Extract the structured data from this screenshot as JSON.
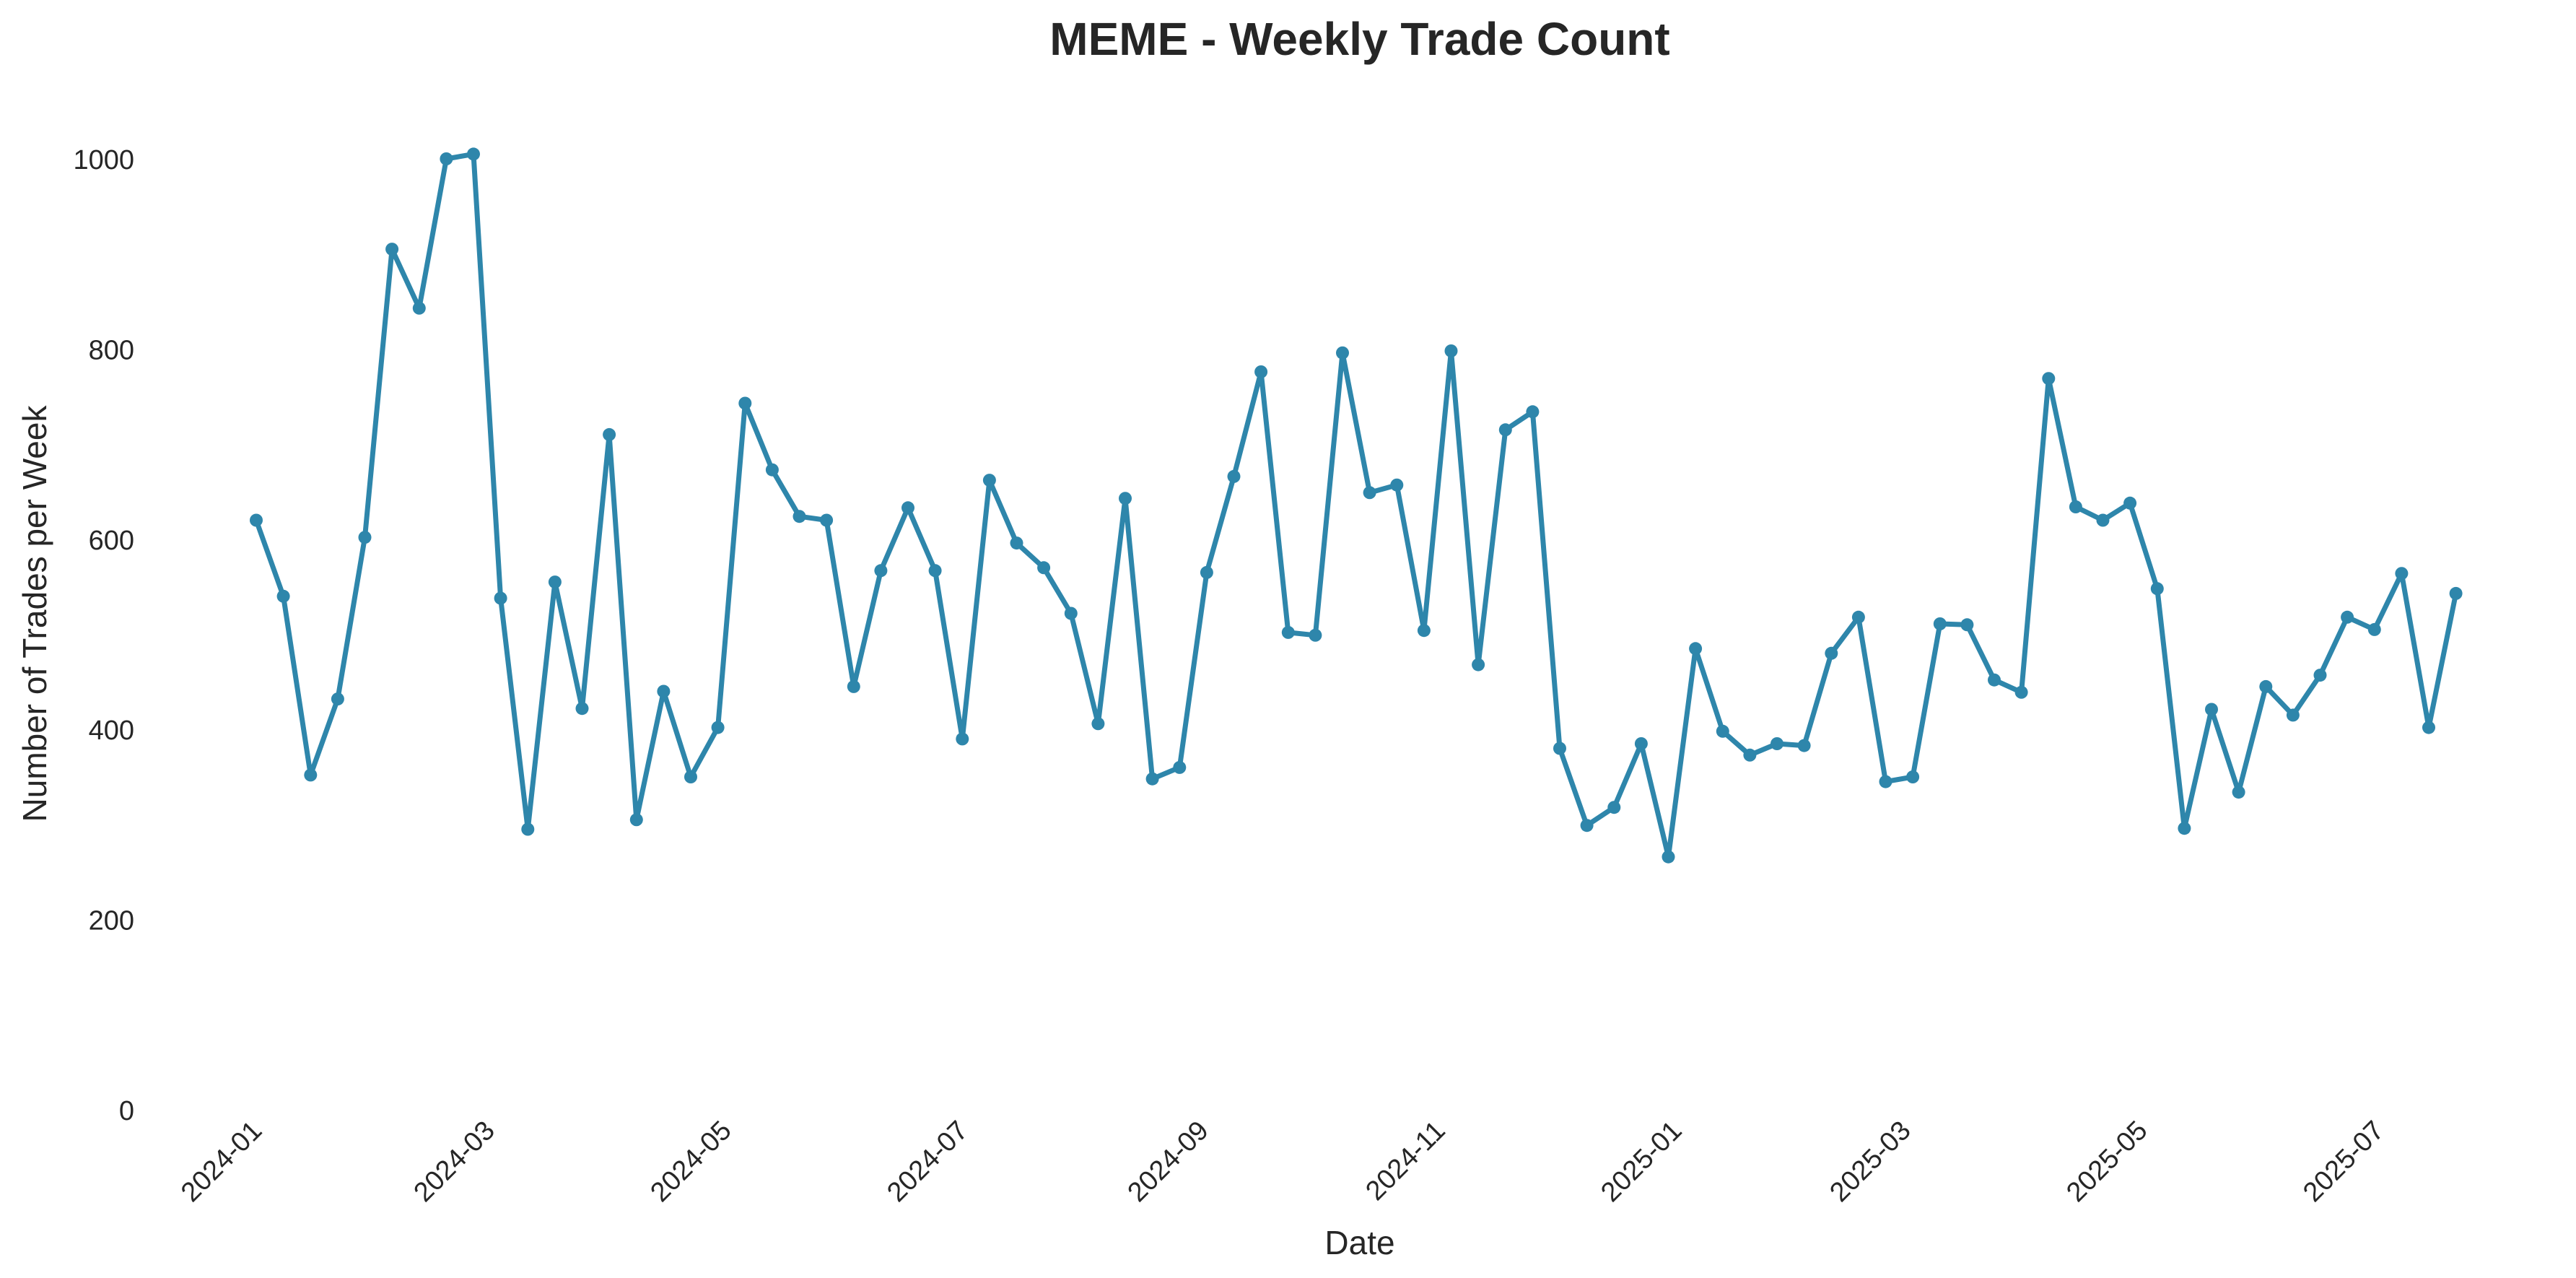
{
  "chart_data": {
    "type": "line",
    "title": "MEME - Weekly Trade Count",
    "xlabel": "Date",
    "ylabel": "Number of Trades per Week",
    "x_axis_type": "date",
    "ylim": [
      0,
      1060
    ],
    "y_ticks": [
      0,
      200,
      400,
      600,
      800,
      1000
    ],
    "x_ticks": [
      "2024-01",
      "2024-03",
      "2024-05",
      "2024-07",
      "2024-09",
      "2024-11",
      "2025-01",
      "2025-03",
      "2025-05",
      "2025-07"
    ],
    "grid": false,
    "legend": false,
    "line_color": "#2e86ab",
    "series": [
      {
        "x": [
          "2024-01-01",
          "2024-01-08",
          "2024-01-15",
          "2024-01-22",
          "2024-01-29",
          "2024-02-05",
          "2024-02-12",
          "2024-02-19",
          "2024-02-26",
          "2024-03-04",
          "2024-03-11",
          "2024-03-18",
          "2024-03-25",
          "2024-04-01",
          "2024-04-08",
          "2024-04-15",
          "2024-04-22",
          "2024-04-29",
          "2024-05-06",
          "2024-05-13",
          "2024-05-20",
          "2024-05-27",
          "2024-06-03",
          "2024-06-10",
          "2024-06-17",
          "2024-06-24",
          "2024-07-01",
          "2024-07-08",
          "2024-07-15",
          "2024-07-22",
          "2024-07-29",
          "2024-08-05",
          "2024-08-12",
          "2024-08-19",
          "2024-08-26",
          "2024-09-02",
          "2024-09-09",
          "2024-09-16",
          "2024-09-23",
          "2024-09-30",
          "2024-10-07",
          "2024-10-14",
          "2024-10-21",
          "2024-10-28",
          "2024-11-04",
          "2024-11-11",
          "2024-11-18",
          "2024-11-25",
          "2024-12-02",
          "2024-12-09",
          "2024-12-16",
          "2024-12-23",
          "2024-12-30",
          "2025-01-06",
          "2025-01-13",
          "2025-01-20",
          "2025-01-27",
          "2025-02-03",
          "2025-02-10",
          "2025-02-17",
          "2025-02-24",
          "2025-03-03",
          "2025-03-10",
          "2025-03-17",
          "2025-03-24",
          "2025-03-31",
          "2025-04-07",
          "2025-04-14",
          "2025-04-21",
          "2025-04-28",
          "2025-05-05",
          "2025-05-12",
          "2025-05-19",
          "2025-05-26",
          "2025-06-02",
          "2025-06-09",
          "2025-06-16",
          "2025-06-23",
          "2025-06-30",
          "2025-07-07",
          "2025-07-14",
          "2025-07-21"
        ],
        "values": [
          620,
          540,
          352,
          432,
          602,
          905,
          843,
          1000,
          1005,
          538,
          295,
          555,
          422,
          710,
          305,
          440,
          350,
          402,
          743,
          673,
          624,
          620,
          445,
          567,
          633,
          567,
          390,
          662,
          596,
          570,
          522,
          406,
          643,
          348,
          360,
          565,
          666,
          776,
          502,
          499,
          796,
          649,
          657,
          504,
          798,
          468,
          715,
          734,
          380,
          299,
          318,
          385,
          266,
          485,
          398,
          373,
          385,
          383,
          480,
          518,
          345,
          350,
          511,
          510,
          452,
          439,
          769,
          634,
          620,
          638,
          548,
          296,
          421,
          334,
          445,
          415,
          457,
          518,
          505,
          564,
          402,
          543
        ]
      }
    ]
  }
}
